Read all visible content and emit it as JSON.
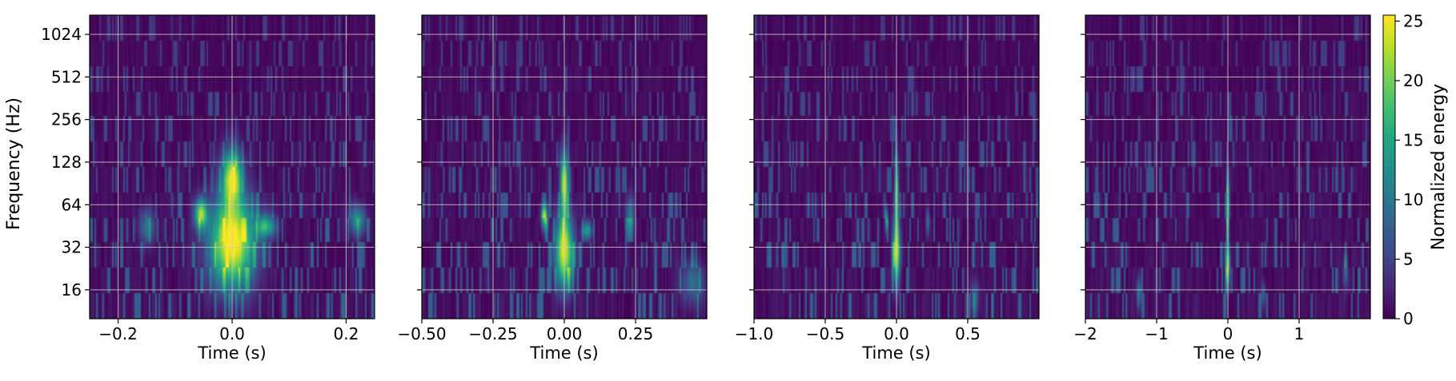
{
  "chart_data": [
    {
      "type": "heatmap",
      "xlabel": "Time (s)",
      "ylabel": "Frequency (Hz)",
      "xlim": [
        -0.25,
        0.25
      ],
      "ylim": [
        10,
        1400
      ],
      "yscale": "log2",
      "x_ticks": [
        -0.2,
        0.0,
        0.2
      ],
      "x_tick_labels": [
        "−0.2",
        "0.0",
        "0.2"
      ],
      "y_ticks": [
        16,
        32,
        64,
        128,
        256,
        512,
        1024
      ],
      "y_tick_labels": [
        "16",
        "32",
        "64",
        "128",
        "256",
        "512",
        "1024"
      ],
      "grid": true,
      "blobs": [
        {
          "t": 0.0,
          "f": 35,
          "sigma_t": 0.028,
          "sigma_logf": 0.75,
          "amp": 26
        },
        {
          "t": 0.0,
          "f": 100,
          "sigma_t": 0.012,
          "sigma_logf": 0.45,
          "amp": 22
        },
        {
          "t": -0.055,
          "f": 55,
          "sigma_t": 0.008,
          "sigma_logf": 0.25,
          "amp": 19
        },
        {
          "t": 0.06,
          "f": 45,
          "sigma_t": 0.012,
          "sigma_logf": 0.18,
          "amp": 14
        },
        {
          "t": 0.22,
          "f": 50,
          "sigma_t": 0.01,
          "sigma_logf": 0.25,
          "amp": 12
        },
        {
          "t": -0.15,
          "f": 45,
          "sigma_t": 0.01,
          "sigma_logf": 0.3,
          "amp": 9
        }
      ]
    },
    {
      "type": "heatmap",
      "xlabel": "Time (s)",
      "xlim": [
        -0.5,
        0.5
      ],
      "ylim": [
        10,
        1400
      ],
      "yscale": "log2",
      "x_ticks": [
        -0.5,
        -0.25,
        0.0,
        0.25
      ],
      "x_tick_labels": [
        "−0.50",
        "−0.25",
        "0.00",
        "0.25"
      ],
      "y_ticks": [
        16,
        32,
        64,
        128,
        256,
        512,
        1024
      ],
      "grid": true,
      "blobs": [
        {
          "t": 0.0,
          "f": 30,
          "sigma_t": 0.022,
          "sigma_logf": 0.6,
          "amp": 24
        },
        {
          "t": 0.0,
          "f": 90,
          "sigma_t": 0.01,
          "sigma_logf": 0.55,
          "amp": 22
        },
        {
          "t": -0.07,
          "f": 52,
          "sigma_t": 0.008,
          "sigma_logf": 0.2,
          "amp": 17
        },
        {
          "t": 0.08,
          "f": 42,
          "sigma_t": 0.012,
          "sigma_logf": 0.15,
          "amp": 13
        },
        {
          "t": 0.23,
          "f": 55,
          "sigma_t": 0.01,
          "sigma_logf": 0.3,
          "amp": 10
        },
        {
          "t": 0.45,
          "f": 18,
          "sigma_t": 0.03,
          "sigma_logf": 0.35,
          "amp": 8
        }
      ]
    },
    {
      "type": "heatmap",
      "xlabel": "Time (s)",
      "xlim": [
        -1.0,
        1.0
      ],
      "ylim": [
        10,
        1400
      ],
      "yscale": "log2",
      "x_ticks": [
        -1.0,
        -0.5,
        0.0,
        0.5
      ],
      "x_tick_labels": [
        "−1.0",
        "−0.5",
        "0.0",
        "0.5"
      ],
      "y_ticks": [
        16,
        32,
        64,
        128,
        256,
        512,
        1024
      ],
      "grid": true,
      "blobs": [
        {
          "t": 0.0,
          "f": 30,
          "sigma_t": 0.018,
          "sigma_logf": 0.55,
          "amp": 22
        },
        {
          "t": 0.0,
          "f": 80,
          "sigma_t": 0.009,
          "sigma_logf": 0.6,
          "amp": 20
        },
        {
          "t": -0.07,
          "f": 50,
          "sigma_t": 0.007,
          "sigma_logf": 0.2,
          "amp": 14
        },
        {
          "t": 0.22,
          "f": 48,
          "sigma_t": 0.008,
          "sigma_logf": 0.2,
          "amp": 9
        },
        {
          "t": 0.55,
          "f": 14,
          "sigma_t": 0.02,
          "sigma_logf": 0.3,
          "amp": 7
        }
      ]
    },
    {
      "type": "heatmap",
      "xlabel": "Time (s)",
      "xlim": [
        -2.0,
        2.0
      ],
      "ylim": [
        10,
        1400
      ],
      "yscale": "log2",
      "x_ticks": [
        -2,
        -1,
        0,
        1
      ],
      "x_tick_labels": [
        "−2",
        "−1",
        "0",
        "1"
      ],
      "y_ticks": [
        16,
        32,
        64,
        128,
        256,
        512,
        1024
      ],
      "grid": true,
      "blobs": [
        {
          "t": 0.0,
          "f": 24,
          "sigma_t": 0.018,
          "sigma_logf": 0.35,
          "amp": 21
        },
        {
          "t": 0.0,
          "f": 62,
          "sigma_t": 0.015,
          "sigma_logf": 0.5,
          "amp": 20
        },
        {
          "t": -1.25,
          "f": 15,
          "sigma_t": 0.02,
          "sigma_logf": 0.25,
          "amp": 10
        },
        {
          "t": 0.5,
          "f": 15,
          "sigma_t": 0.02,
          "sigma_logf": 0.2,
          "amp": 7
        },
        {
          "t": 1.65,
          "f": 22,
          "sigma_t": 0.02,
          "sigma_logf": 0.3,
          "amp": 9
        }
      ]
    }
  ],
  "colorbar": {
    "label": "Normalized energy",
    "colormap": "viridis",
    "range": [
      0,
      25.5
    ],
    "ticks": [
      0,
      5,
      10,
      15,
      20,
      25
    ],
    "tick_labels": [
      "0",
      "5",
      "10",
      "15",
      "20",
      "25"
    ]
  },
  "colors": {
    "viridis_low": "#440154",
    "viridis_mid": "#21918c",
    "viridis_high": "#fde725",
    "grid": "#c8c8c8",
    "frame": "#000000"
  }
}
